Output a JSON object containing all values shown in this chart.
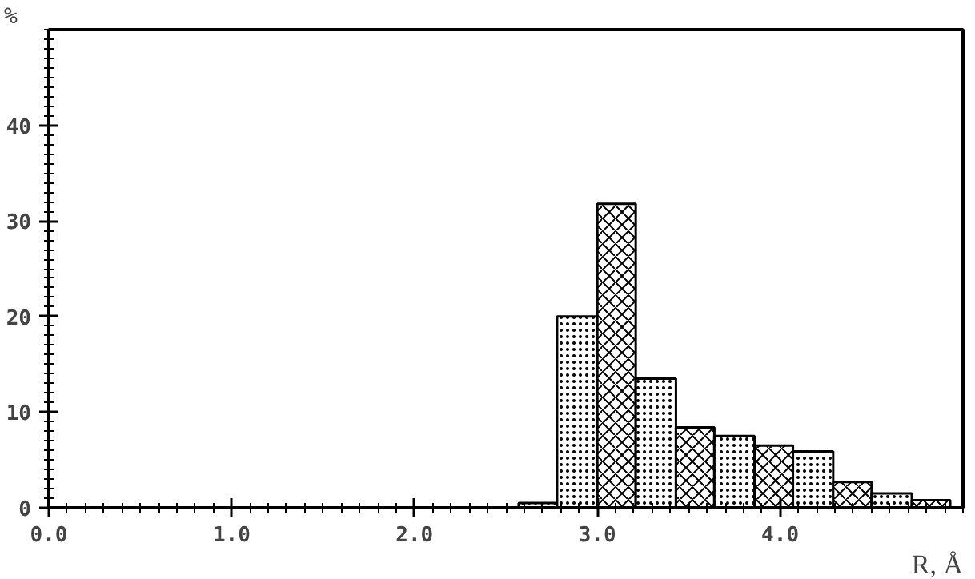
{
  "chart_data": {
    "type": "histogram",
    "xlabel": "R, Å",
    "ylabel": "%",
    "bins": [
      2.57,
      2.78,
      3.0,
      3.21,
      3.43,
      3.64,
      3.86,
      4.07,
      4.29,
      4.5,
      4.72,
      4.93
    ],
    "values": [
      0.5,
      20,
      31.8,
      13.5,
      8.4,
      7.5,
      6.5,
      5.9,
      2.7,
      1.5,
      0.8
    ],
    "color": "#ffffff",
    "xlim": [
      0,
      5
    ],
    "ylim": [
      0,
      50
    ],
    "xticks": [
      {
        "value": 0,
        "label": "0.0"
      },
      {
        "value": 1,
        "label": "1.0"
      },
      {
        "value": 2,
        "label": "2.0"
      },
      {
        "value": 3,
        "label": "3.0"
      },
      {
        "value": 4,
        "label": "4.0"
      }
    ],
    "yticks": [
      0,
      10,
      20,
      30,
      40
    ],
    "grid": false
  }
}
